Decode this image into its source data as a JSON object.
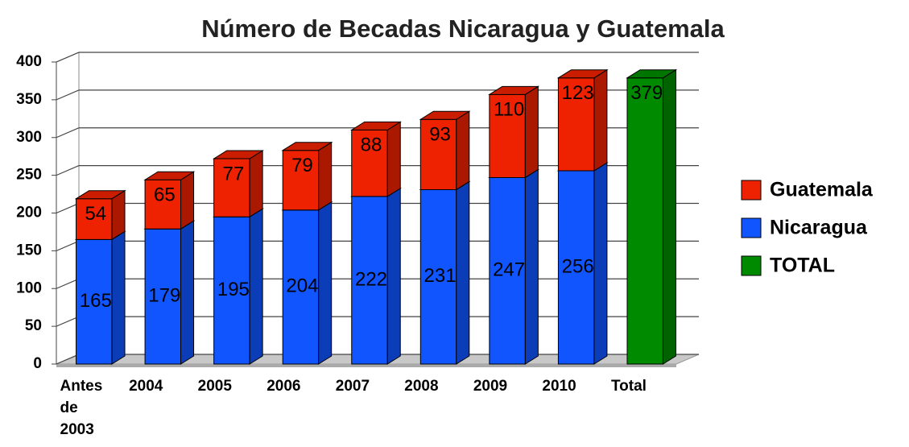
{
  "chart_data": {
    "type": "bar",
    "stacked": true,
    "three_d": true,
    "title": "Número de Becadas Nicaragua y Guatemala",
    "categories": [
      "Antes de 2003",
      "2004",
      "2005",
      "2006",
      "2007",
      "2008",
      "2009",
      "2010",
      "Total"
    ],
    "series": [
      {
        "name": "Guatemala",
        "color": "#ee2200",
        "values": [
          54,
          65,
          77,
          79,
          88,
          93,
          110,
          123,
          null
        ]
      },
      {
        "name": "Nicaragua",
        "color": "#1155ff",
        "values": [
          165,
          179,
          195,
          204,
          222,
          231,
          247,
          256,
          null
        ]
      },
      {
        "name": "TOTAL",
        "color": "#008a00",
        "values": [
          null,
          null,
          null,
          null,
          null,
          null,
          null,
          null,
          379
        ]
      }
    ],
    "ylim": [
      0,
      400
    ],
    "yticks": [
      0,
      50,
      100,
      150,
      200,
      250,
      300,
      350,
      400
    ],
    "grid": true,
    "legend": "right"
  }
}
